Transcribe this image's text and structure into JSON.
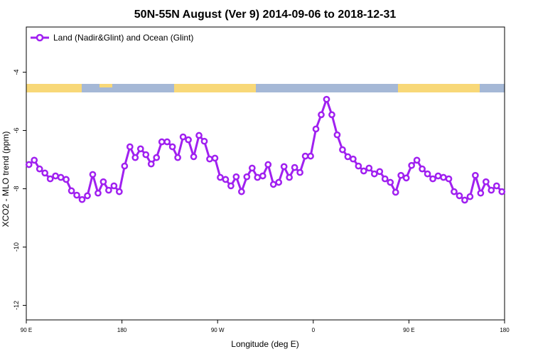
{
  "chart_data": {
    "type": "line",
    "title": "50N-55N August (Ver 9)   2014-09-06 to 2018-12-31",
    "x_label": "Longitude (deg E)",
    "y_label": "XCO2 - MLO trend (ppm)",
    "x": [
      92.5,
      97.5,
      102.5,
      107.5,
      112.5,
      117.5,
      122.5,
      127.5,
      132.5,
      137.5,
      142.5,
      147.5,
      152.5,
      157.5,
      162.5,
      167.5,
      172.5,
      177.5,
      182.5,
      187.5,
      192.5,
      197.5,
      202.5,
      207.5,
      212.5,
      217.5,
      222.5,
      227.5,
      232.5,
      237.5,
      242.5,
      247.5,
      252.5,
      257.5,
      262.5,
      267.5,
      272.5,
      277.5,
      282.5,
      287.5,
      292.5,
      297.5,
      302.5,
      307.5,
      312.5,
      317.5,
      322.5,
      327.5,
      332.5,
      337.5,
      342.5,
      347.5,
      352.5,
      357.5,
      362.5,
      367.5,
      372.5,
      377.5,
      382.5,
      387.5,
      392.5,
      397.5,
      402.5,
      407.5,
      412.5,
      417.5,
      422.5,
      427.5,
      432.5,
      437.5,
      442.5,
      447.5,
      452.5,
      457.5,
      462.5,
      467.5,
      472.5,
      477.5,
      482.5,
      487.5,
      492.5,
      497.5,
      502.5,
      507.5,
      512.5,
      517.5,
      522.5,
      527.5,
      532.5,
      537.5
    ],
    "series": [
      {
        "name": "Land (Nadir&Glint) and Ocean (Glint)",
        "color": "#a020f0",
        "values": [
          -7.17,
          -7.02,
          -7.32,
          -7.46,
          -7.66,
          -7.56,
          -7.61,
          -7.68,
          -8.07,
          -8.22,
          -8.37,
          -8.24,
          -7.51,
          -8.15,
          -7.76,
          -8.05,
          -7.9,
          -8.1,
          -7.22,
          -6.56,
          -6.93,
          -6.63,
          -6.83,
          -7.15,
          -6.93,
          -6.39,
          -6.39,
          -6.56,
          -6.93,
          -6.22,
          -6.32,
          -6.9,
          -6.17,
          -6.37,
          -6.98,
          -6.95,
          -7.61,
          -7.68,
          -7.9,
          -7.59,
          -8.1,
          -7.59,
          -7.29,
          -7.61,
          -7.56,
          -7.17,
          -7.85,
          -7.78,
          -7.24,
          -7.61,
          -7.27,
          -7.44,
          -6.88,
          -6.88,
          -5.95,
          -5.46,
          -4.93,
          -5.46,
          -6.15,
          -6.66,
          -6.9,
          -6.98,
          -7.22,
          -7.39,
          -7.29,
          -7.49,
          -7.41,
          -7.66,
          -7.78,
          -8.12,
          -7.54,
          -7.63,
          -7.2,
          -7.02,
          -7.32,
          -7.49,
          -7.66,
          -7.56,
          -7.61,
          -7.66,
          -8.1,
          -8.24,
          -8.39,
          -8.27,
          -7.54,
          -8.15,
          -7.76,
          -8.05,
          -7.9,
          -8.1
        ]
      }
    ],
    "xlim": [
      90,
      540
    ],
    "xticks": [
      {
        "value": 90,
        "label": "90 E"
      },
      180,
      {
        "value": 270,
        "label": "90 W"
      },
      {
        "value": 360,
        "label": "0"
      },
      {
        "value": 450,
        "label": "90 E"
      },
      {
        "value": 540,
        "label": "180"
      }
    ],
    "ylim": [
      -12.5,
      -2.45
    ],
    "yticks": [
      -4,
      -6,
      -8,
      -10,
      -12
    ],
    "legend": "top-left"
  }
}
